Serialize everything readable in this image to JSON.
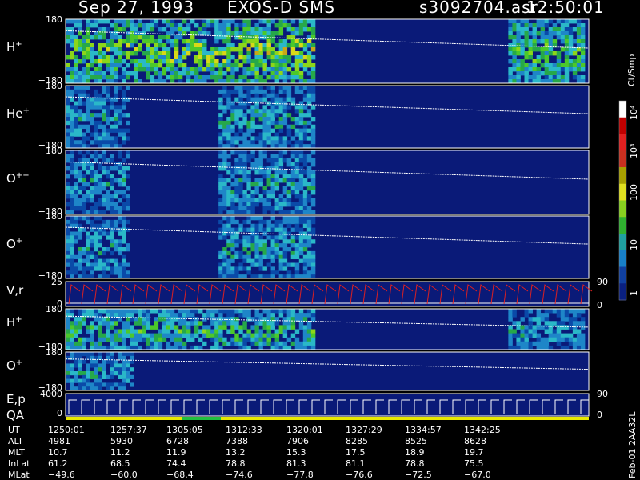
{
  "header": {
    "date": "Sep 27, 1993",
    "instrument": "EXOS-D SMS",
    "file": "s3092704.asr",
    "time": "12:50:01"
  },
  "colorbar": {
    "unit": "Ct/Smp",
    "ticks": [
      "10⁴",
      "10³",
      "100",
      "10",
      "1"
    ]
  },
  "chart_data": {
    "type": "heatmap",
    "title": "Sep 27, 1993   EXOS-D SMS",
    "x_time_ticks": [
      "1250:01",
      "1257:37",
      "1305:05",
      "1312:33",
      "1320:01",
      "1327:29",
      "1334:57",
      "1342:25"
    ],
    "panels": [
      {
        "name": "H+",
        "ion": "H",
        "charge": "+",
        "ylim": [
          -180,
          180
        ],
        "ticks": [
          "180",
          "−180"
        ],
        "active_ranges": [
          [
            0,
            0.36,
            0.9
          ],
          [
            0.34,
            0.47,
            1.0
          ],
          [
            0.84,
            0.99,
            0.8
          ]
        ]
      },
      {
        "name": "He+",
        "ion": "He",
        "charge": "+",
        "ylim": [
          -180,
          180
        ],
        "ticks": [
          "180",
          "−180"
        ],
        "active_ranges": [
          [
            0,
            0.12,
            0.5
          ],
          [
            0.29,
            0.47,
            0.55
          ]
        ]
      },
      {
        "name": "O++",
        "ion": "O",
        "charge": "++",
        "ylim": [
          -180,
          180
        ],
        "ticks": [
          "180",
          "−180"
        ],
        "active_ranges": [
          [
            0,
            0.12,
            0.5
          ],
          [
            0.29,
            0.47,
            0.55
          ]
        ]
      },
      {
        "name": "O+",
        "ion": "O",
        "charge": "+",
        "ylim": [
          -180,
          180
        ],
        "ticks": [
          "180",
          "−180"
        ],
        "active_ranges": [
          [
            0,
            0.12,
            0.5
          ],
          [
            0.29,
            0.47,
            0.55
          ]
        ]
      },
      {
        "name": "V,r",
        "ion": "V,r",
        "charge": "",
        "ylim": [
          0,
          25
        ],
        "ticks": [
          "25",
          "0"
        ],
        "right_ticks": [
          "90",
          "0"
        ]
      },
      {
        "name": "H+",
        "ion": "H",
        "charge": "+",
        "ylim": [
          -180,
          180
        ],
        "ticks": [
          "180",
          "−180"
        ],
        "active_ranges": [
          [
            0,
            0.47,
            0.7
          ],
          [
            0.84,
            0.99,
            0.5
          ]
        ]
      },
      {
        "name": "O+",
        "ion": "O",
        "charge": "+",
        "ylim": [
          -180,
          180
        ],
        "ticks": [
          "180",
          "−180"
        ],
        "active_ranges": [
          [
            0,
            0.13,
            0.5
          ]
        ]
      },
      {
        "name": "E,p",
        "ion": "E,p",
        "charge": "",
        "ylim": [
          0,
          4000
        ],
        "ticks": [
          "4000",
          "0"
        ],
        "right_ticks": [
          "90",
          "0"
        ]
      }
    ],
    "qa_label": "QA"
  },
  "ephemeris": {
    "rows": [
      {
        "label": "UT",
        "values": [
          "1250:01",
          "1257:37",
          "1305:05",
          "1312:33",
          "1320:01",
          "1327:29",
          "1334:57",
          "1342:25"
        ]
      },
      {
        "label": "ALT",
        "values": [
          "4981",
          "5930",
          "6728",
          "7388",
          "7906",
          "8285",
          "8525",
          "8628"
        ]
      },
      {
        "label": "MLT",
        "values": [
          "10.7",
          "11.2",
          "11.9",
          "13.2",
          "15.3",
          "17.5",
          "18.9",
          "19.7"
        ]
      },
      {
        "label": "InLat",
        "values": [
          "61.2",
          "68.5",
          "74.4",
          "78.8",
          "81.3",
          "81.1",
          "78.8",
          "75.5"
        ]
      },
      {
        "label": "MLat",
        "values": [
          "−49.6",
          "−60.0",
          "−68.4",
          "−74.6",
          "−77.8",
          "−76.6",
          "−72.5",
          "−67.0"
        ]
      }
    ]
  },
  "footer": {
    "stamp": "Feb-01  2AA32L"
  }
}
